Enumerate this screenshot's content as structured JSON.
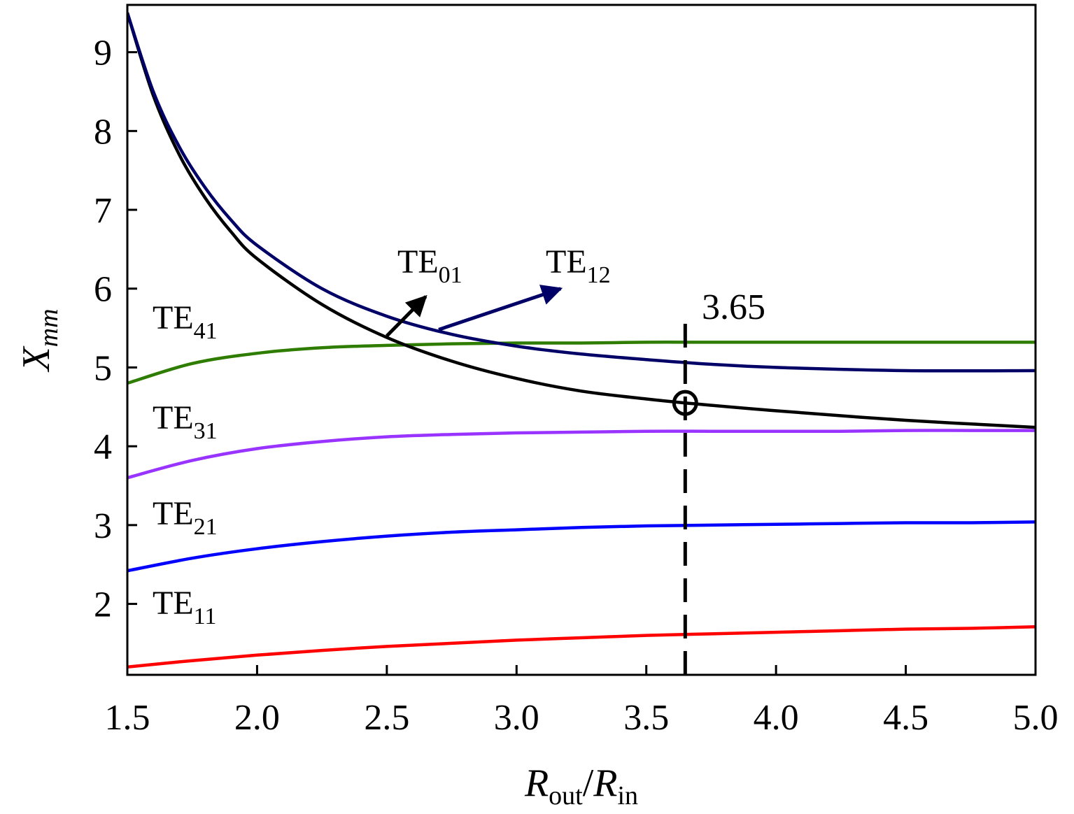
{
  "chart_data": {
    "type": "line",
    "xlabel": {
      "main1": "R",
      "sub1": "out",
      "slash": "/",
      "main2": "R",
      "sub2": "in"
    },
    "ylabel": {
      "main": "X",
      "sub": "mm"
    },
    "xlim": [
      1.5,
      5.0
    ],
    "ylim": [
      1.1,
      9.6
    ],
    "xticks": [
      "1.5",
      "2.0",
      "2.5",
      "3.0",
      "3.5",
      "4.0",
      "4.5",
      "5.0"
    ],
    "yticks": [
      "2",
      "3",
      "4",
      "5",
      "6",
      "7",
      "8",
      "9"
    ],
    "grid": false,
    "series": [
      {
        "name": "TE11",
        "label_main": "TE",
        "label_sub": "11",
        "color": "#ff0000",
        "x": [
          1.5,
          1.75,
          2.0,
          2.25,
          2.5,
          2.75,
          3.0,
          3.25,
          3.5,
          3.75,
          4.0,
          4.25,
          4.5,
          4.75,
          5.0
        ],
        "y": [
          1.2,
          1.28,
          1.35,
          1.41,
          1.46,
          1.5,
          1.54,
          1.57,
          1.6,
          1.62,
          1.64,
          1.66,
          1.68,
          1.69,
          1.71
        ]
      },
      {
        "name": "TE21",
        "label_main": "TE",
        "label_sub": "21",
        "color": "#0000ff",
        "x": [
          1.5,
          1.75,
          2.0,
          2.25,
          2.5,
          2.75,
          3.0,
          3.25,
          3.5,
          3.75,
          4.0,
          4.25,
          4.5,
          4.75,
          5.0
        ],
        "y": [
          2.42,
          2.58,
          2.7,
          2.79,
          2.86,
          2.91,
          2.94,
          2.97,
          2.99,
          3.0,
          3.01,
          3.02,
          3.03,
          3.03,
          3.04
        ]
      },
      {
        "name": "TE31",
        "label_main": "TE",
        "label_sub": "31",
        "color": "#9933ff",
        "x": [
          1.5,
          1.75,
          2.0,
          2.25,
          2.5,
          2.75,
          3.0,
          3.25,
          3.5,
          3.75,
          4.0,
          4.25,
          4.5,
          4.75,
          5.0
        ],
        "y": [
          3.6,
          3.82,
          3.97,
          4.06,
          4.12,
          4.15,
          4.17,
          4.18,
          4.19,
          4.19,
          4.19,
          4.19,
          4.2,
          4.2,
          4.2
        ]
      },
      {
        "name": "TE41",
        "label_main": "TE",
        "label_sub": "41",
        "color": "#2e7d00",
        "x": [
          1.5,
          1.75,
          2.0,
          2.25,
          2.5,
          2.75,
          3.0,
          3.25,
          3.5,
          3.75,
          4.0,
          4.25,
          4.5,
          4.75,
          5.0
        ],
        "y": [
          4.8,
          5.05,
          5.18,
          5.25,
          5.28,
          5.3,
          5.31,
          5.31,
          5.32,
          5.32,
          5.32,
          5.32,
          5.32,
          5.32,
          5.32
        ]
      },
      {
        "name": "TE01",
        "label_main": "TE",
        "label_sub": "01",
        "color": "#000000",
        "x": [
          1.5,
          1.6,
          1.7,
          1.8,
          1.9,
          2.0,
          2.25,
          2.5,
          2.75,
          3.0,
          3.25,
          3.5,
          3.65,
          4.0,
          4.5,
          5.0
        ],
        "y": [
          9.5,
          8.45,
          7.7,
          7.15,
          6.72,
          6.38,
          5.8,
          5.38,
          5.08,
          4.86,
          4.7,
          4.6,
          4.55,
          4.45,
          4.33,
          4.24
        ]
      },
      {
        "name": "TE12",
        "label_main": "TE",
        "label_sub": "12",
        "color": "#000066",
        "x": [
          1.5,
          1.6,
          1.7,
          1.8,
          1.9,
          2.0,
          2.25,
          2.5,
          2.75,
          3.0,
          3.25,
          3.5,
          3.75,
          4.0,
          4.5,
          5.0
        ],
        "y": [
          9.5,
          8.5,
          7.8,
          7.28,
          6.87,
          6.55,
          6.0,
          5.65,
          5.42,
          5.27,
          5.17,
          5.1,
          5.04,
          5.0,
          4.96,
          4.96
        ]
      }
    ],
    "annotations": {
      "vline": {
        "x": 3.65,
        "y_from": 1.1,
        "y_to": 5.7,
        "label": "3.65"
      },
      "marker": {
        "x": 3.65,
        "y": 4.55,
        "shape": "open-circle"
      },
      "arrow_te01": {
        "from": [
          2.5,
          5.4
        ],
        "to": [
          2.65,
          5.9
        ]
      },
      "arrow_te12": {
        "from": [
          2.7,
          5.48
        ],
        "to": [
          3.17,
          6.0
        ]
      }
    }
  }
}
